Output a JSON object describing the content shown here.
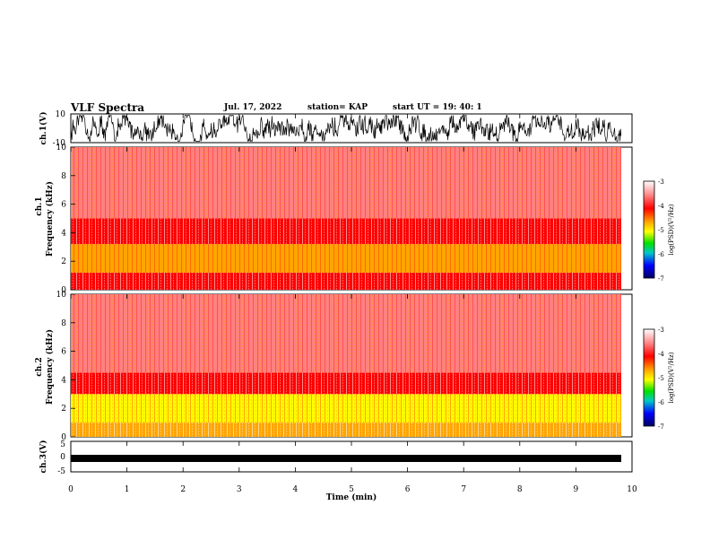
{
  "header": {
    "title": "VLF Spectra",
    "date": "Jul. 17, 2022",
    "station": "station= KAP",
    "start": "start UT = 19: 40: 1"
  },
  "chart_data": [
    {
      "type": "line",
      "title": "",
      "ylabel": "ch.1(V)",
      "ylim": [
        -10,
        10
      ],
      "yticks": [
        "10",
        "-10"
      ],
      "xlim": [
        0,
        10
      ],
      "description_values": {
        "min_approx": -8,
        "max_approx": 8,
        "mean_approx": 0
      }
    },
    {
      "type": "heatmap",
      "title": "",
      "ylabel_top": "ch.1",
      "ylabel": "Frequency (kHz)",
      "ylim": [
        0,
        10
      ],
      "yticks": [
        "0",
        "2",
        "4",
        "6",
        "8",
        "10"
      ],
      "xlim": [
        0,
        9.8
      ],
      "colorbar": {
        "label": "log(PSD)(V²/Hz)",
        "range": [
          -7,
          -3
        ],
        "ticks": [
          "-3",
          "-4",
          "-5",
          "-6",
          "-7"
        ]
      },
      "bands_khz": [
        {
          "from": 0,
          "to": 1.2,
          "log_psd": -3.6
        },
        {
          "from": 1.2,
          "to": 3.2,
          "log_psd": -4.6
        },
        {
          "from": 3.2,
          "to": 5.0,
          "log_psd": -3.9
        },
        {
          "from": 5.0,
          "to": 10,
          "log_psd": -3.2
        }
      ]
    },
    {
      "type": "heatmap",
      "title": "",
      "ylabel_top": "ch.2",
      "ylabel": "Frequency (kHz)",
      "ylim": [
        0,
        10
      ],
      "yticks": [
        "0",
        "2",
        "4",
        "6",
        "8",
        "10"
      ],
      "xlim": [
        0,
        9.8
      ],
      "colorbar": {
        "label": "log(PSD)(V²/Hz)",
        "range": [
          -7,
          -3
        ],
        "ticks": [
          "-3",
          "-4",
          "-5",
          "-6",
          "-7"
        ]
      },
      "bands_khz": [
        {
          "from": 0,
          "to": 1.0,
          "log_psd": -4.2
        },
        {
          "from": 1.0,
          "to": 3.0,
          "log_psd": -5.0
        },
        {
          "from": 3.0,
          "to": 4.5,
          "log_psd": -3.9
        },
        {
          "from": 4.5,
          "to": 10,
          "log_psd": -3.2
        }
      ]
    },
    {
      "type": "line",
      "title": "",
      "ylabel": "ch.3(V)",
      "ylim": [
        -5,
        5
      ],
      "yticks": [
        "5",
        "0",
        "-5"
      ],
      "xlim": [
        0,
        10
      ],
      "xlabel": "Time (min)",
      "xticks": [
        "0",
        "1",
        "2",
        "3",
        "4",
        "5",
        "6",
        "7",
        "8",
        "9",
        "10"
      ],
      "description_values": {
        "min_approx": -1.5,
        "max_approx": -0.6
      }
    }
  ]
}
